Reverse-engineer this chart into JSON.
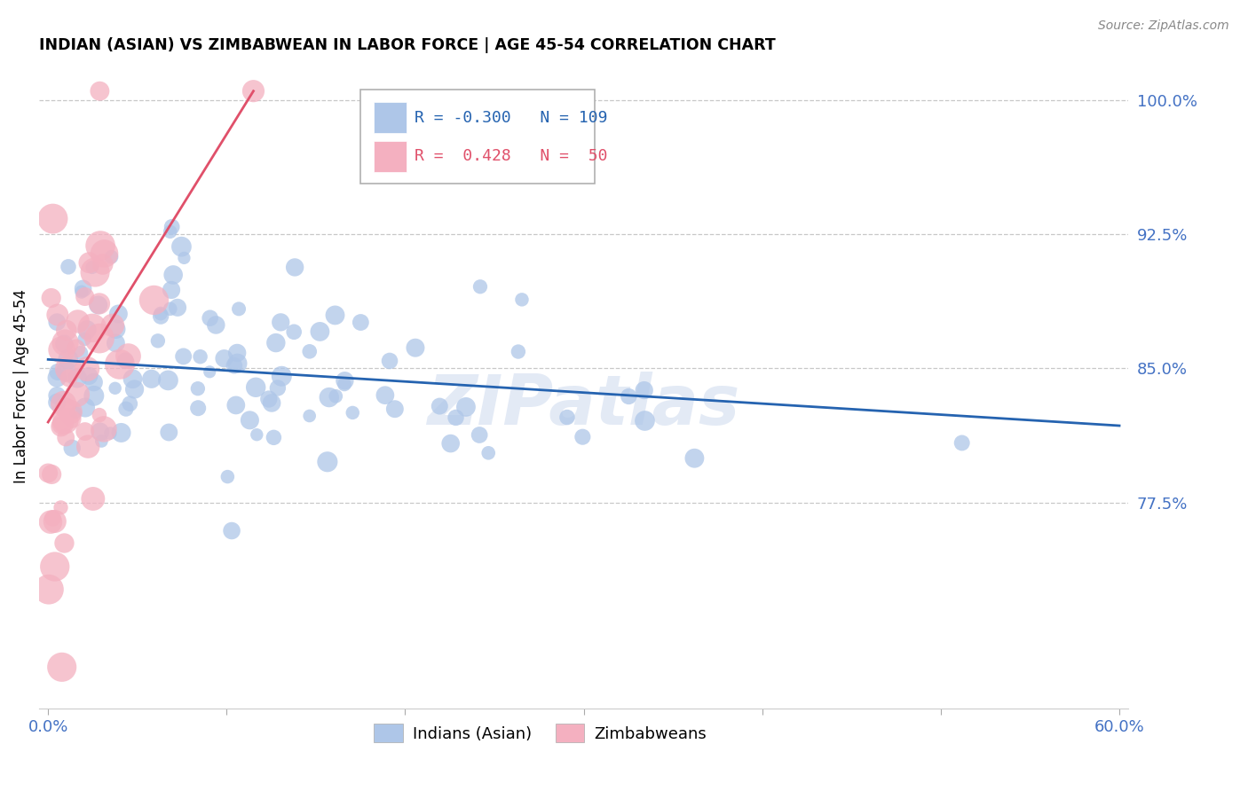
{
  "title": "INDIAN (ASIAN) VS ZIMBABWEAN IN LABOR FORCE | AGE 45-54 CORRELATION CHART",
  "source": "Source: ZipAtlas.com",
  "ylabel": "In Labor Force | Age 45-54",
  "xlim": [
    -0.005,
    0.605
  ],
  "ylim": [
    0.66,
    1.02
  ],
  "xticks": [
    0.0,
    0.1,
    0.2,
    0.3,
    0.4,
    0.5,
    0.6
  ],
  "xticklabels_show": [
    "0.0%",
    "",
    "",
    "",
    "",
    "",
    "60.0%"
  ],
  "yticks": [
    0.775,
    0.85,
    0.925,
    1.0
  ],
  "yticklabels": [
    "77.5%",
    "85.0%",
    "92.5%",
    "100.0%"
  ],
  "ytick_color": "#4472c4",
  "xtick_color": "#4472c4",
  "grid_color": "#c8c8c8",
  "blue_color": "#aec6e8",
  "blue_line_color": "#2563b0",
  "pink_color": "#f4b0c0",
  "pink_line_color": "#e0506a",
  "legend_blue_R": "-0.300",
  "legend_blue_N": "109",
  "legend_pink_R": "0.428",
  "legend_pink_N": "50",
  "legend_label_blue": "Indians (Asian)",
  "legend_label_pink": "Zimbabweans",
  "watermark": "ZIPatlas",
  "blue_R": -0.3,
  "blue_N": 109,
  "pink_R": 0.428,
  "pink_N": 50,
  "blue_line_x0": 0.0,
  "blue_line_y0": 0.855,
  "blue_line_x1": 0.6,
  "blue_line_y1": 0.818,
  "pink_line_x0": 0.0,
  "pink_line_y0": 0.82,
  "pink_line_x1": 0.115,
  "pink_line_y1": 1.005
}
